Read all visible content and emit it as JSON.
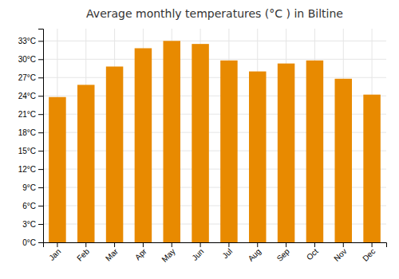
{
  "chart_data": {
    "type": "bar",
    "title": "Average monthly temperatures (°C ) in Biltine",
    "categories": [
      "Jan",
      "Feb",
      "Mar",
      "Apr",
      "May",
      "Jun",
      "Jul",
      "Aug",
      "Sep",
      "Oct",
      "Nov",
      "Dec"
    ],
    "values": [
      23.8,
      25.8,
      28.8,
      31.8,
      33.0,
      32.5,
      29.8,
      28.0,
      29.3,
      29.8,
      26.8,
      24.2
    ],
    "color": "#E88A00",
    "ylim": [
      0,
      35
    ],
    "yticks": [
      {
        "value": 0,
        "label": "0°C"
      },
      {
        "value": 3,
        "label": "3°C"
      },
      {
        "value": 6,
        "label": "6°C"
      },
      {
        "value": 9,
        "label": "9°C"
      },
      {
        "value": 12,
        "label": "12°C"
      },
      {
        "value": 15,
        "label": "15°C"
      },
      {
        "value": 18,
        "label": "18°C"
      },
      {
        "value": 21,
        "label": "21°C"
      },
      {
        "value": 24,
        "label": "24°C"
      },
      {
        "value": 27,
        "label": "27°C"
      },
      {
        "value": 30,
        "label": "30°C"
      },
      {
        "value": 33,
        "label": "33°C"
      }
    ],
    "grid": true
  }
}
